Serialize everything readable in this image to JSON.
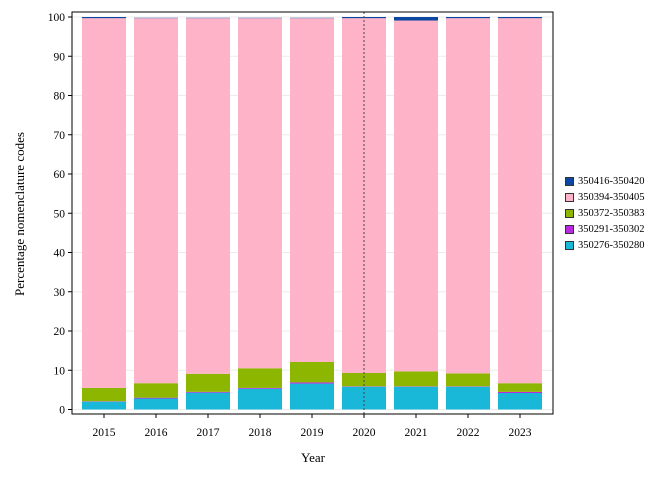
{
  "chart_data": {
    "type": "bar",
    "stacked": true,
    "xlabel": "Year",
    "ylabel": "Percentage nomenclature codes",
    "ylim": [
      0,
      100
    ],
    "yticks": [
      0,
      10,
      20,
      30,
      40,
      50,
      60,
      70,
      80,
      90,
      100
    ],
    "categories": [
      "2015",
      "2016",
      "2017",
      "2018",
      "2019",
      "2020",
      "2021",
      "2022",
      "2023"
    ],
    "grid": "horizontal",
    "legend_position": "right",
    "reference_line_category": "2020",
    "series": [
      {
        "name": "350276-350280",
        "color": "#1ab8d8",
        "values": [
          2.0,
          2.8,
          4.3,
          5.3,
          6.6,
          5.8,
          5.8,
          5.8,
          4.2
        ]
      },
      {
        "name": "350291-350302",
        "color": "#b829e0",
        "values": [
          0.1,
          0.2,
          0.2,
          0.2,
          0.3,
          0.1,
          0.1,
          0.1,
          0.3
        ]
      },
      {
        "name": "350372-350383",
        "color": "#8db600",
        "values": [
          3.4,
          3.7,
          4.6,
          5.0,
          5.2,
          3.4,
          3.8,
          3.3,
          2.2
        ]
      },
      {
        "name": "350394-350405",
        "color": "#ffb3c8",
        "values": [
          94.2,
          93.0,
          90.6,
          89.2,
          87.6,
          90.4,
          89.4,
          90.5,
          93.0
        ]
      },
      {
        "name": "350416-350420",
        "color": "#0d47a1",
        "values": [
          0.3,
          0.1,
          0.1,
          0.1,
          0.1,
          0.3,
          0.9,
          0.3,
          0.3
        ]
      }
    ]
  }
}
